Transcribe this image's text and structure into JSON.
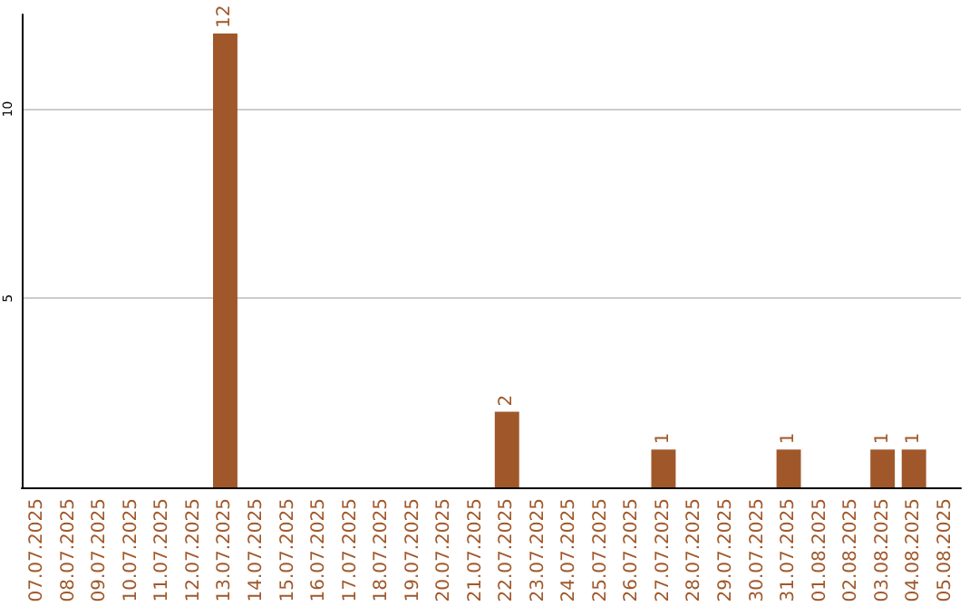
{
  "chart_data": {
    "type": "bar",
    "categories": [
      "07.07.2025",
      "08.07.2025",
      "09.07.2025",
      "10.07.2025",
      "11.07.2025",
      "12.07.2025",
      "13.07.2025",
      "14.07.2025",
      "15.07.2025",
      "16.07.2025",
      "17.07.2025",
      "18.07.2025",
      "19.07.2025",
      "20.07.2025",
      "21.07.2025",
      "22.07.2025",
      "23.07.2025",
      "24.07.2025",
      "25.07.2025",
      "26.07.2025",
      "27.07.2025",
      "28.07.2025",
      "29.07.2025",
      "30.07.2025",
      "31.07.2025",
      "01.08.2025",
      "02.08.2025",
      "03.08.2025",
      "04.08.2025",
      "05.08.2025"
    ],
    "values": [
      0,
      0,
      0,
      0,
      0,
      0,
      12,
      0,
      0,
      0,
      0,
      0,
      0,
      0,
      0,
      2,
      0,
      0,
      0,
      0,
      1,
      0,
      0,
      0,
      1,
      0,
      0,
      1,
      1,
      0
    ],
    "value_labels": [
      null,
      null,
      null,
      null,
      null,
      null,
      "12",
      null,
      null,
      null,
      null,
      null,
      null,
      null,
      null,
      "2",
      null,
      null,
      null,
      null,
      "1",
      null,
      null,
      null,
      "1",
      null,
      null,
      "1",
      "1",
      null
    ],
    "color": "#a0582a",
    "ylim": [
      0,
      12.5
    ],
    "yticks": [
      5,
      10
    ],
    "grid": "y"
  }
}
